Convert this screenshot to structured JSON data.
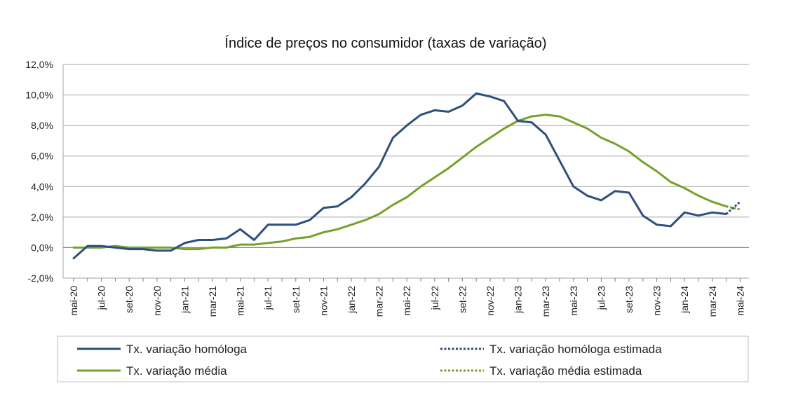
{
  "chart_data": {
    "type": "line",
    "title": "Índice de preços no consumidor  (taxas  de variação)",
    "ylim": [
      -2,
      12
    ],
    "yticks": [
      "-2,0%",
      "0,0%",
      "2,0%",
      "4,0%",
      "6,0%",
      "8,0%",
      "10,0%",
      "12,0%"
    ],
    "ytick_values": [
      -2,
      0,
      2,
      4,
      6,
      8,
      10,
      12
    ],
    "grid": true,
    "legend_position": "bottom",
    "x": [
      "mai-20",
      "jun-20",
      "jul-20",
      "ago-20",
      "set-20",
      "out-20",
      "nov-20",
      "dez-20",
      "jan-21",
      "fev-21",
      "mar-21",
      "abr-21",
      "mai-21",
      "jun-21",
      "jul-21",
      "ago-21",
      "set-21",
      "out-21",
      "nov-21",
      "dez-21",
      "jan-22",
      "fev-22",
      "mar-22",
      "abr-22",
      "mai-22",
      "jun-22",
      "jul-22",
      "ago-22",
      "set-22",
      "out-22",
      "nov-22",
      "dez-22",
      "jan-23",
      "fev-23",
      "mar-23",
      "abr-23",
      "mai-23",
      "jun-23",
      "jul-23",
      "ago-23",
      "set-23",
      "out-23",
      "nov-23",
      "dez-23",
      "jan-24",
      "fev-24",
      "mar-24",
      "abr-24",
      "mai-24"
    ],
    "xtick_labels": [
      "mai-20",
      "jul-20",
      "set-20",
      "nov-20",
      "jan-21",
      "mar-21",
      "mai-21",
      "jul-21",
      "set-21",
      "nov-21",
      "jan-22",
      "mar-22",
      "mai-22",
      "jul-22",
      "set-22",
      "nov-22",
      "jan-23",
      "mar-23",
      "mai-23",
      "jul-23",
      "set-23",
      "nov-23",
      "jan-24",
      "mar-24",
      "mai-24"
    ],
    "series": [
      {
        "name": "Tx. variação homóloga",
        "color": "#2e4f7c",
        "style": "solid",
        "values": [
          -0.7,
          0.1,
          0.1,
          0.0,
          -0.1,
          -0.1,
          -0.2,
          -0.2,
          0.3,
          0.5,
          0.5,
          0.6,
          1.2,
          0.5,
          1.5,
          1.5,
          1.5,
          1.8,
          2.6,
          2.7,
          3.3,
          4.2,
          5.3,
          7.2,
          8.0,
          8.7,
          9.0,
          8.9,
          9.3,
          10.1,
          9.9,
          9.6,
          8.3,
          8.2,
          7.4,
          5.7,
          4.0,
          3.4,
          3.1,
          3.7,
          3.6,
          2.1,
          1.5,
          1.4,
          2.3,
          2.1,
          2.3,
          2.2,
          null
        ]
      },
      {
        "name": "Tx. variação homóloga estimada",
        "color": "#2e4f7c",
        "style": "dotted",
        "values": [
          null,
          null,
          null,
          null,
          null,
          null,
          null,
          null,
          null,
          null,
          null,
          null,
          null,
          null,
          null,
          null,
          null,
          null,
          null,
          null,
          null,
          null,
          null,
          null,
          null,
          null,
          null,
          null,
          null,
          null,
          null,
          null,
          null,
          null,
          null,
          null,
          null,
          null,
          null,
          null,
          null,
          null,
          null,
          null,
          null,
          null,
          null,
          2.2,
          3.0
        ]
      },
      {
        "name": "Tx. variação média",
        "color": "#76a12d",
        "style": "solid",
        "values": [
          0.0,
          0.0,
          0.0,
          0.1,
          0.0,
          0.0,
          0.0,
          0.0,
          -0.1,
          -0.1,
          0.0,
          0.0,
          0.2,
          0.2,
          0.3,
          0.4,
          0.6,
          0.7,
          1.0,
          1.2,
          1.5,
          1.8,
          2.2,
          2.8,
          3.3,
          4.0,
          4.6,
          5.2,
          5.9,
          6.6,
          7.2,
          7.8,
          8.3,
          8.6,
          8.7,
          8.6,
          8.2,
          7.8,
          7.2,
          6.8,
          6.3,
          5.6,
          5.0,
          4.3,
          3.9,
          3.4,
          3.0,
          2.7,
          null
        ]
      },
      {
        "name": "Tx. variação média  estimada",
        "color": "#76a12d",
        "style": "dotted",
        "values": [
          null,
          null,
          null,
          null,
          null,
          null,
          null,
          null,
          null,
          null,
          null,
          null,
          null,
          null,
          null,
          null,
          null,
          null,
          null,
          null,
          null,
          null,
          null,
          null,
          null,
          null,
          null,
          null,
          null,
          null,
          null,
          null,
          null,
          null,
          null,
          null,
          null,
          null,
          null,
          null,
          null,
          null,
          null,
          null,
          null,
          null,
          null,
          2.7,
          2.5
        ]
      }
    ]
  }
}
